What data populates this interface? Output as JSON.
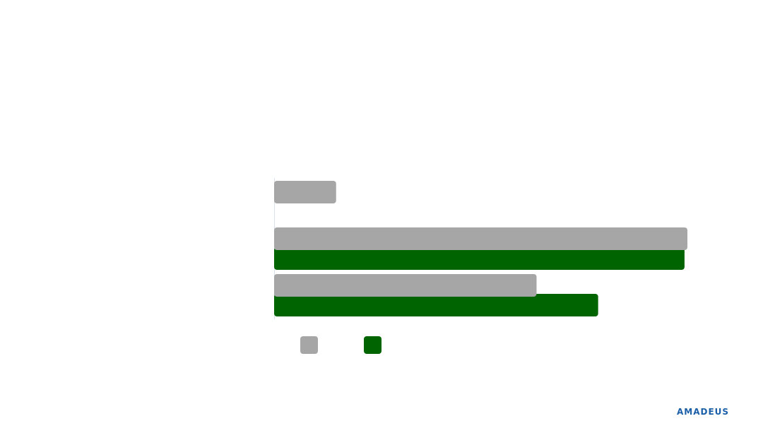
{
  "chart_data": {
    "type": "bar",
    "orientation": "horizontal",
    "categories": [
      "",
      "",
      ""
    ],
    "series": [
      {
        "values": [
          15,
          100,
          63.5
        ],
        "color": "#a6a6a6"
      },
      {
        "values": [
          null,
          99.3,
          78.4
        ],
        "color": "#006400"
      }
    ],
    "xlim": [
      0,
      100
    ],
    "grid": false,
    "legend": "bottom-left"
  },
  "brand": {
    "logo_text": "amadeus",
    "logo_color": "#1a5ea8"
  }
}
